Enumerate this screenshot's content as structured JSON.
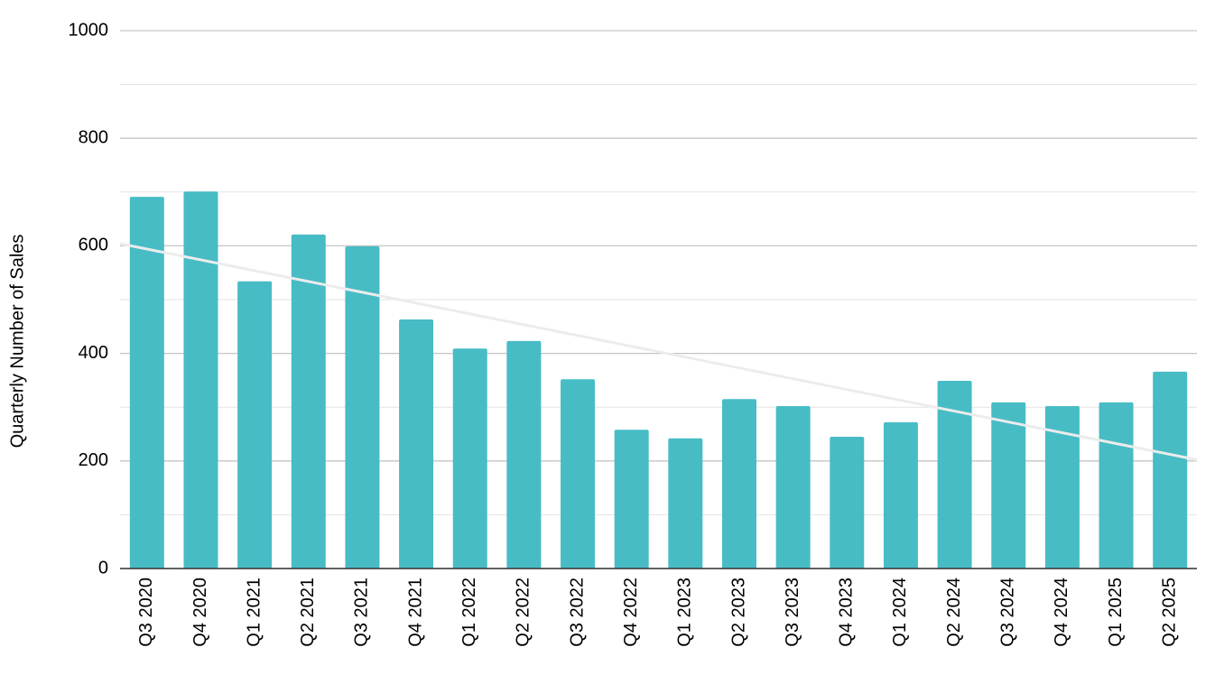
{
  "chart_data": {
    "type": "bar",
    "y_axis_label": "Quarterly Number of Sales",
    "categories": [
      "Q3 2020",
      "Q4 2020",
      "Q1 2021",
      "Q2 2021",
      "Q3 2021",
      "Q4 2021",
      "Q1 2022",
      "Q2 2022",
      "Q3 2022",
      "Q4 2022",
      "Q1 2023",
      "Q2 2023",
      "Q3 2023",
      "Q4 2023",
      "Q1 2024",
      "Q2 2024",
      "Q3 2024",
      "Q4 2024",
      "Q1 2025",
      "Q2 2025"
    ],
    "values": [
      691,
      701,
      534,
      621,
      599,
      463,
      409,
      423,
      352,
      258,
      242,
      315,
      302,
      245,
      272,
      349,
      309,
      302,
      309,
      366
    ],
    "color": "#47bcc5",
    "ylim": [
      0,
      1000
    ],
    "yticks": [
      0,
      200,
      400,
      600,
      800,
      1000
    ],
    "grid": true,
    "minor_grid": true,
    "trendline": true,
    "trendline_color": "#ececec"
  }
}
